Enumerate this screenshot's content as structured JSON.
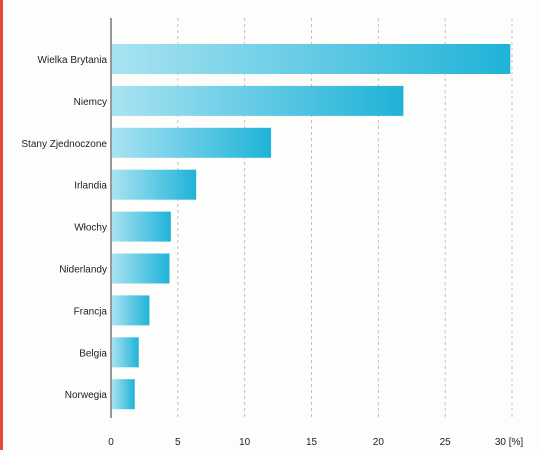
{
  "chart_data": {
    "type": "bar",
    "orientation": "horizontal",
    "title": "",
    "categories": [
      "Wielka Brytania",
      "Niemcy",
      "Stany Zjednoczone",
      "Irlandia",
      "Włochy",
      "Niderlandy",
      "Francja",
      "Belgia",
      "Norwegia"
    ],
    "values": [
      29.8,
      21.8,
      11.9,
      6.3,
      4.4,
      4.3,
      2.8,
      2.0,
      1.7
    ],
    "xlabel": "",
    "ylabel": "",
    "xlim": [
      0,
      30
    ],
    "x_ticks": [
      "0",
      "5",
      "10",
      "15",
      "20",
      "25",
      "30 [%]"
    ],
    "grid": true,
    "legend": "none",
    "colors": {
      "bar_start": "#a9e3f2",
      "bar_end": "#1fb3d8",
      "grid": "#b5b5b5",
      "axis": "#333333",
      "edge": "#e24a3b"
    }
  }
}
